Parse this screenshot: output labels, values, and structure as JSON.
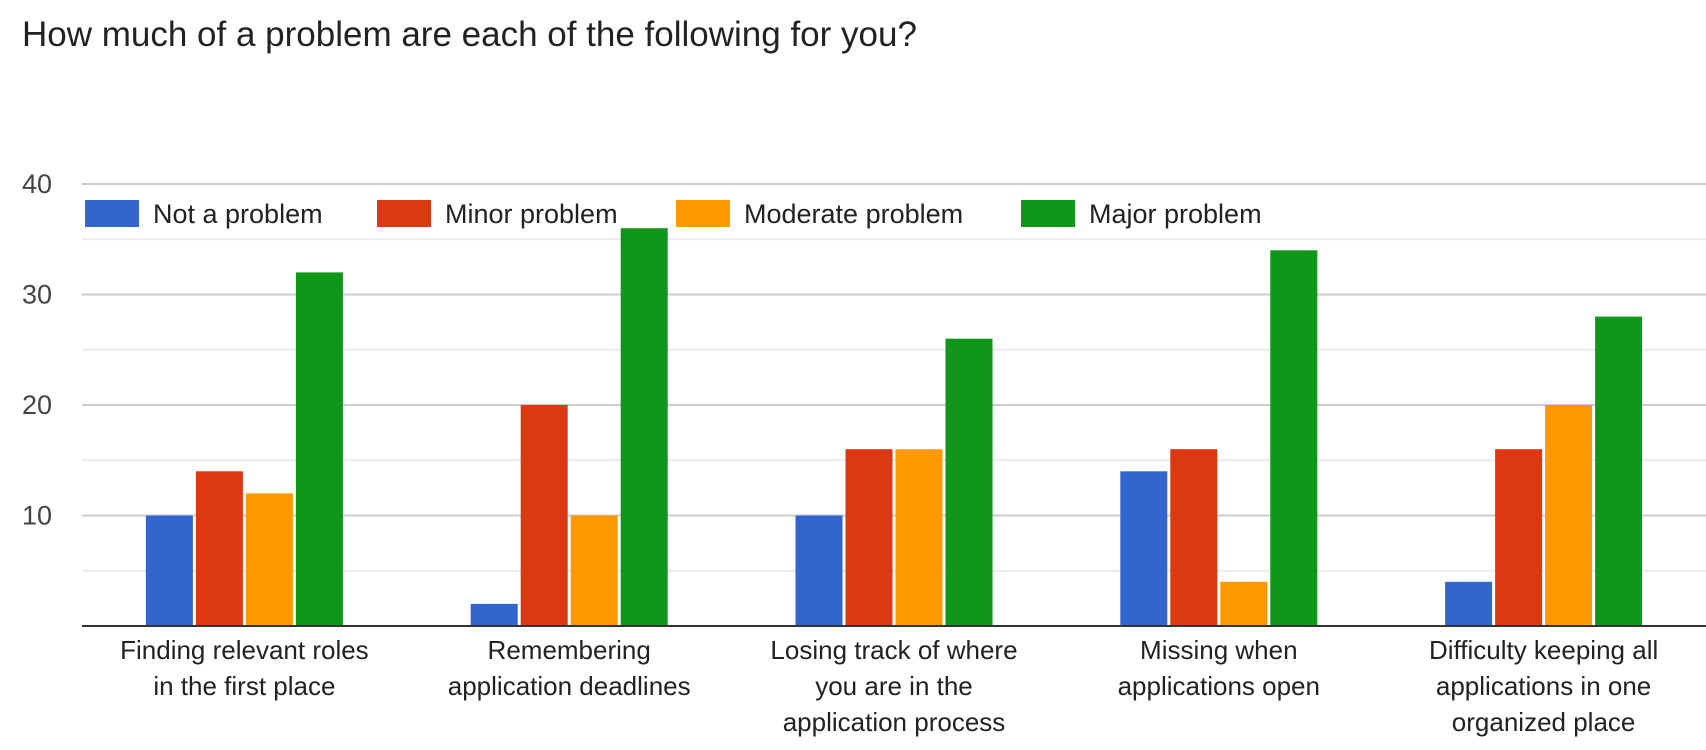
{
  "chart_data": {
    "type": "bar",
    "title": "How much of a problem are each of the following for you?",
    "categories": [
      [
        "Finding relevant roles",
        "in the first place"
      ],
      [
        "Remembering",
        "application deadlines"
      ],
      [
        "Losing track of where",
        "you are in the",
        "application process"
      ],
      [
        "Missing when",
        "applications open"
      ],
      [
        "Difficulty keeping all",
        "applications in one",
        "organized place"
      ]
    ],
    "series": [
      {
        "name": "Not a problem",
        "color": "#3366cc",
        "values": [
          10,
          2,
          10,
          14,
          4
        ]
      },
      {
        "name": "Minor problem",
        "color": "#dc3912",
        "values": [
          14,
          20,
          16,
          16,
          16
        ]
      },
      {
        "name": "Moderate problem",
        "color": "#ff9900",
        "values": [
          12,
          10,
          16,
          4,
          20
        ]
      },
      {
        "name": "Major problem",
        "color": "#109618",
        "values": [
          32,
          36,
          26,
          34,
          28
        ]
      }
    ],
    "yticks": [
      10,
      20,
      30,
      40
    ],
    "ylim": [
      0,
      40
    ],
    "grid": true,
    "legend": "top"
  }
}
